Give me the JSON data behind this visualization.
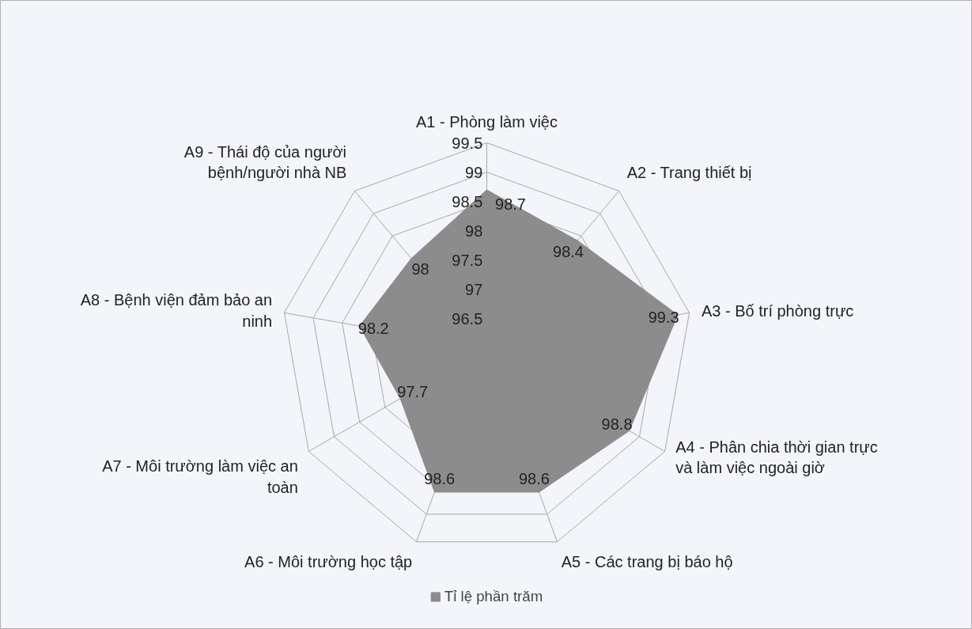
{
  "chart_data": {
    "type": "radar",
    "categories": [
      "A1 - Phòng làm việc",
      "A2 - Trang thiết bị",
      "A3 - Bố trí phòng trực",
      "A4 - Phân chia thời gian trực và làm việc ngoài giờ",
      "A5 - Các trang bị báo hộ",
      "A6 - Môi trường học tập",
      "A7 - Môi trường làm việc an toàn",
      "A8 - Bệnh viện đảm bảo an ninh",
      "A9 - Thái độ của người bệnh/người nhà NB"
    ],
    "series": [
      {
        "name": "Tỉ lệ phần trăm",
        "color": "#8c8c8c",
        "values": [
          98.7,
          98.4,
          99.3,
          98.8,
          98.6,
          98.6,
          97.7,
          98.2,
          98.0
        ]
      }
    ],
    "ylim": [
      96,
      99.5
    ],
    "yticks": [
      96.5,
      97,
      97.5,
      98,
      98.5,
      99,
      99.5
    ],
    "grid": true,
    "legend": "bottom",
    "data_labels": true
  }
}
